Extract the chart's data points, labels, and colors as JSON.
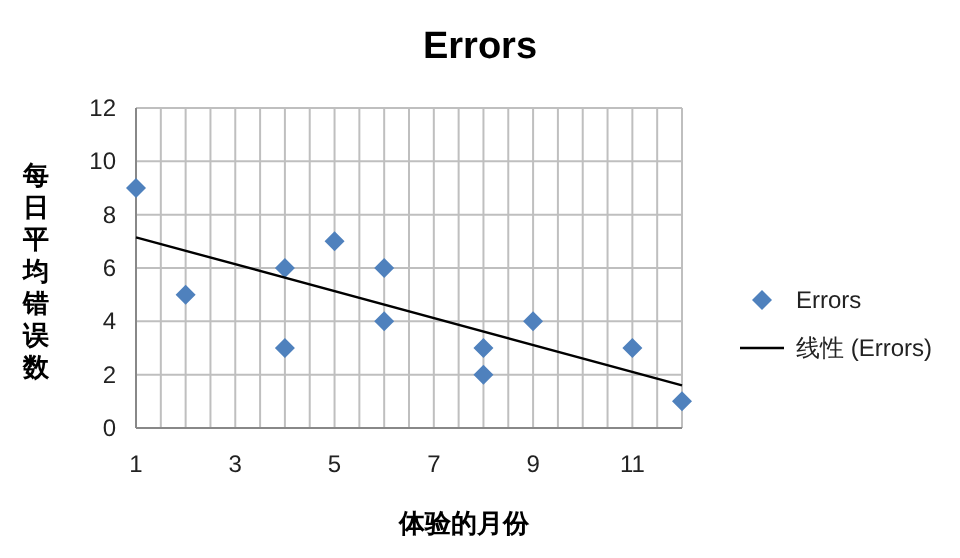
{
  "chart_data": {
    "type": "scatter",
    "title": "Errors",
    "xlabel": "体验的月份",
    "ylabel": "每日平均错误数",
    "series": [
      {
        "name": "Errors",
        "color": "#4f81bd",
        "marker": "diamond",
        "x": [
          1,
          2,
          4,
          4,
          5,
          6,
          6,
          8,
          8,
          9,
          11,
          12
        ],
        "values": [
          9,
          5,
          6,
          3,
          7,
          6,
          4,
          3,
          2,
          4,
          3,
          1
        ]
      },
      {
        "name": "线性 (Errors)",
        "type": "line",
        "color": "#000000",
        "marker": "none",
        "x": [
          1,
          12
        ],
        "values": [
          7.15,
          1.6
        ]
      }
    ],
    "xlim": [
      1,
      12
    ],
    "ylim": [
      0,
      12
    ],
    "xticks": [
      1,
      {
        "value": 1.5,
        "label": null
      },
      {
        "value": 2,
        "label": null
      },
      {
        "value": 2.5,
        "label": null
      },
      3,
      {
        "value": 3.5,
        "label": null
      },
      {
        "value": 4,
        "label": null
      },
      {
        "value": 4.5,
        "label": null
      },
      5,
      {
        "value": 5.5,
        "label": null
      },
      {
        "value": 6,
        "label": null
      },
      {
        "value": 6.5,
        "label": null
      },
      7,
      {
        "value": 7.5,
        "label": null
      },
      {
        "value": 8,
        "label": null
      },
      {
        "value": 8.5,
        "label": null
      },
      9,
      {
        "value": 9.5,
        "label": null
      },
      {
        "value": 10,
        "label": null
      },
      {
        "value": 10.5,
        "label": null
      },
      11,
      {
        "value": 11.5,
        "label": null
      },
      {
        "value": 12,
        "label": null
      }
    ],
    "yticks": [
      0,
      2,
      4,
      6,
      8,
      10,
      12
    ],
    "grid": true,
    "legend": "right"
  }
}
